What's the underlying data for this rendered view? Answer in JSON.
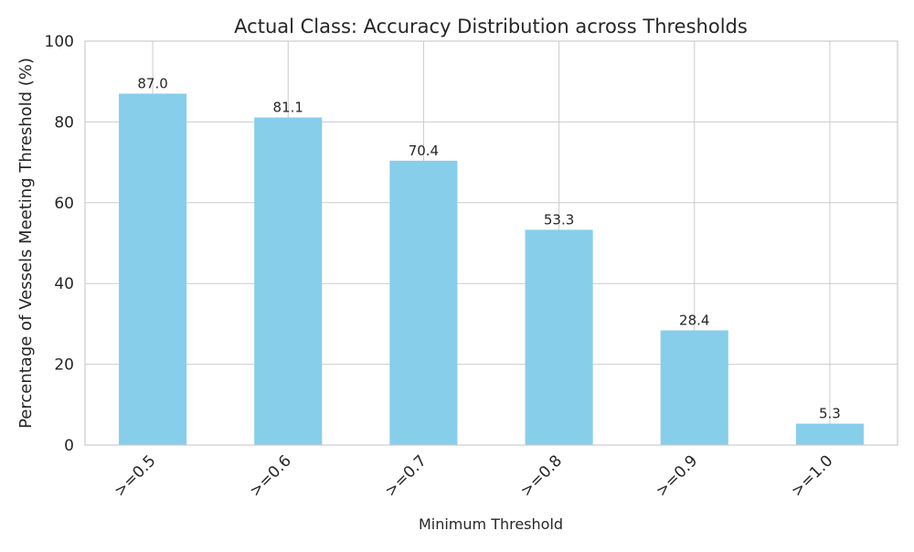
{
  "chart_data": {
    "type": "bar",
    "title": "Actual Class: Accuracy Distribution across Thresholds",
    "xlabel": "Minimum Threshold",
    "ylabel": "Percentage of Vessels Meeting Threshold (%)",
    "categories": [
      ">=0.5",
      ">=0.6",
      ">=0.7",
      ">=0.8",
      ">=0.9",
      ">=1.0"
    ],
    "values": [
      87.0,
      81.1,
      70.4,
      53.3,
      28.4,
      5.3
    ],
    "data_labels": [
      "87.0",
      "81.1",
      "70.4",
      "53.3",
      "28.4",
      "5.3"
    ],
    "ylim": [
      0,
      100
    ],
    "yticks": [
      0,
      20,
      40,
      60,
      80,
      100
    ],
    "grid": true,
    "bar_color": "#87ceeb",
    "x_tick_rotation_deg": 45
  }
}
